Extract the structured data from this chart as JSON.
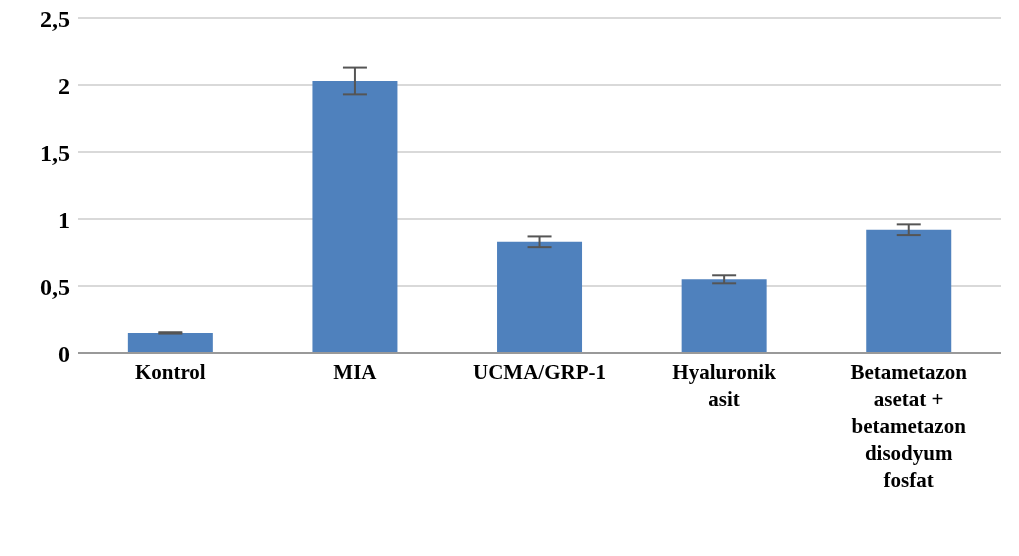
{
  "chart_data": {
    "type": "bar",
    "categories": [
      "Kontrol",
      "MIA",
      "UCMA/GRP-1",
      "Hyaluronik asit",
      "Betametazon asetat + betametazon disodyum fosfat"
    ],
    "values": [
      0.15,
      2.03,
      0.83,
      0.55,
      0.92
    ],
    "errors": [
      0.005,
      0.1,
      0.04,
      0.03,
      0.04
    ],
    "color": "#4f81bd",
    "ylim": [
      0,
      2.5
    ],
    "yticks": [
      {
        "value": 0,
        "label": "0"
      },
      {
        "value": 0.5,
        "label": "0,5"
      },
      {
        "value": 1,
        "label": "1"
      },
      {
        "value": 1.5,
        "label": "1,5"
      },
      {
        "value": 2,
        "label": "2"
      },
      {
        "value": 2.5,
        "label": "2,5"
      }
    ],
    "grid": "y"
  }
}
